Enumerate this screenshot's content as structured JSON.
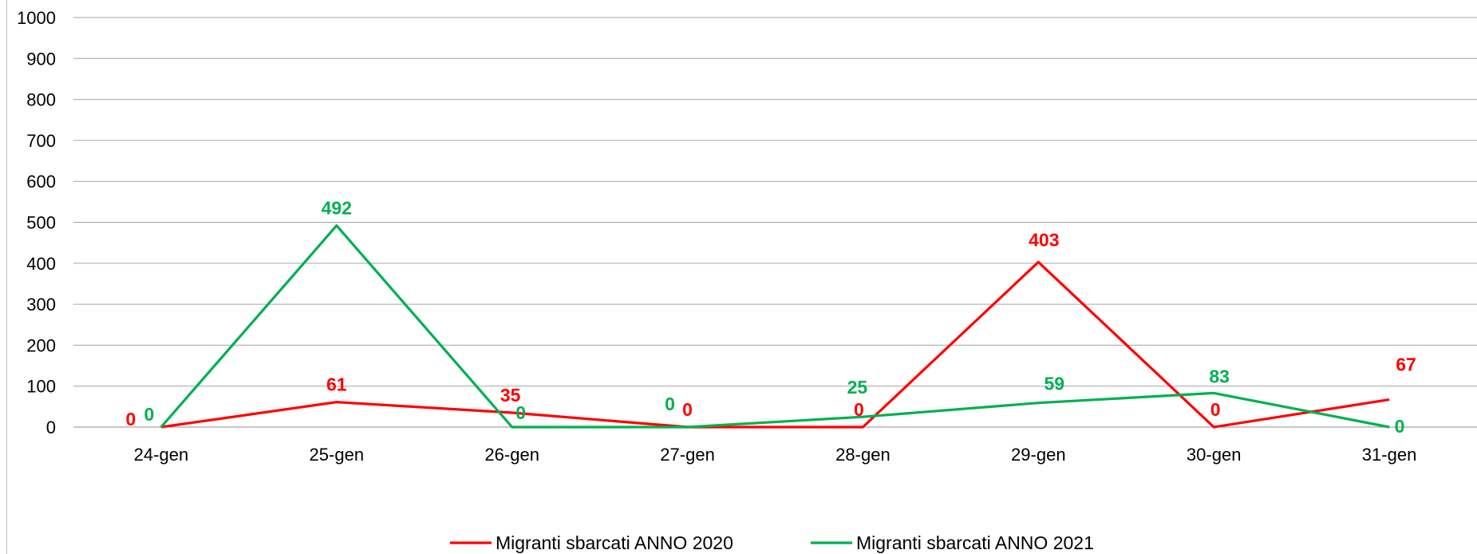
{
  "chart_data": {
    "type": "line",
    "title": "",
    "xlabel": "",
    "ylabel": "",
    "categories": [
      "24-gen",
      "25-gen",
      "26-gen",
      "27-gen",
      "28-gen",
      "29-gen",
      "30-gen",
      "31-gen"
    ],
    "ylim": [
      0,
      1000
    ],
    "yticks": [
      0,
      100,
      200,
      300,
      400,
      500,
      600,
      700,
      800,
      900,
      1000
    ],
    "grid": true,
    "legend_position": "bottom",
    "series": [
      {
        "name": "Migranti sbarcati ANNO 2020",
        "color": "#ff0000",
        "values": [
          0,
          61,
          35,
          0,
          0,
          403,
          0,
          67
        ]
      },
      {
        "name": "Migranti sbarcati ANNO 2021",
        "color": "#00b050",
        "values": [
          0,
          492,
          0,
          0,
          25,
          59,
          83,
          0
        ]
      }
    ]
  }
}
